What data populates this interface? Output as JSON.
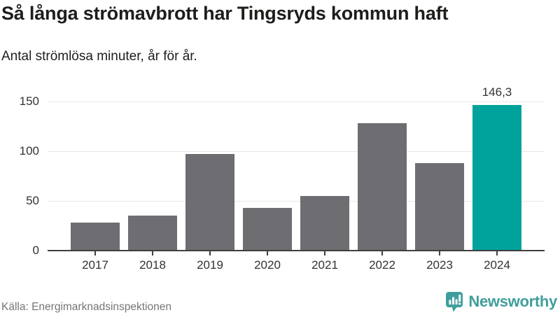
{
  "header": {
    "title": "Så långa strömavbrott har Tingsryds kommun haft",
    "subtitle": "Antal strömlösa minuter, år för år."
  },
  "chart_data": {
    "type": "bar",
    "categories": [
      "2017",
      "2018",
      "2019",
      "2020",
      "2021",
      "2022",
      "2023",
      "2024"
    ],
    "values": [
      28,
      35,
      97,
      43,
      55,
      128,
      88,
      146.3
    ],
    "highlight_index": 7,
    "highlight_value_label": "146,3",
    "title": "Så långa strömavbrott har Tingsryds kommun haft",
    "subtitle": "Antal strömlösa minuter, år för år.",
    "xlabel": "",
    "ylabel": "",
    "ylim": [
      0,
      150
    ],
    "yticks": [
      0,
      50,
      100,
      150
    ],
    "ytick_labels": [
      "0",
      "50",
      "100",
      "150"
    ],
    "grid": true,
    "legend": false,
    "colors": {
      "bar": "#6e6d71",
      "highlight": "#00a39b",
      "gridline": "#e6e6e6",
      "axis": "#3f3f3f",
      "tick_label": "#333333"
    }
  },
  "footer": {
    "source": "Källa: Energimarknadsinspektionen",
    "brand": "Newsworthy",
    "brand_color": "#3f9e9b"
  }
}
